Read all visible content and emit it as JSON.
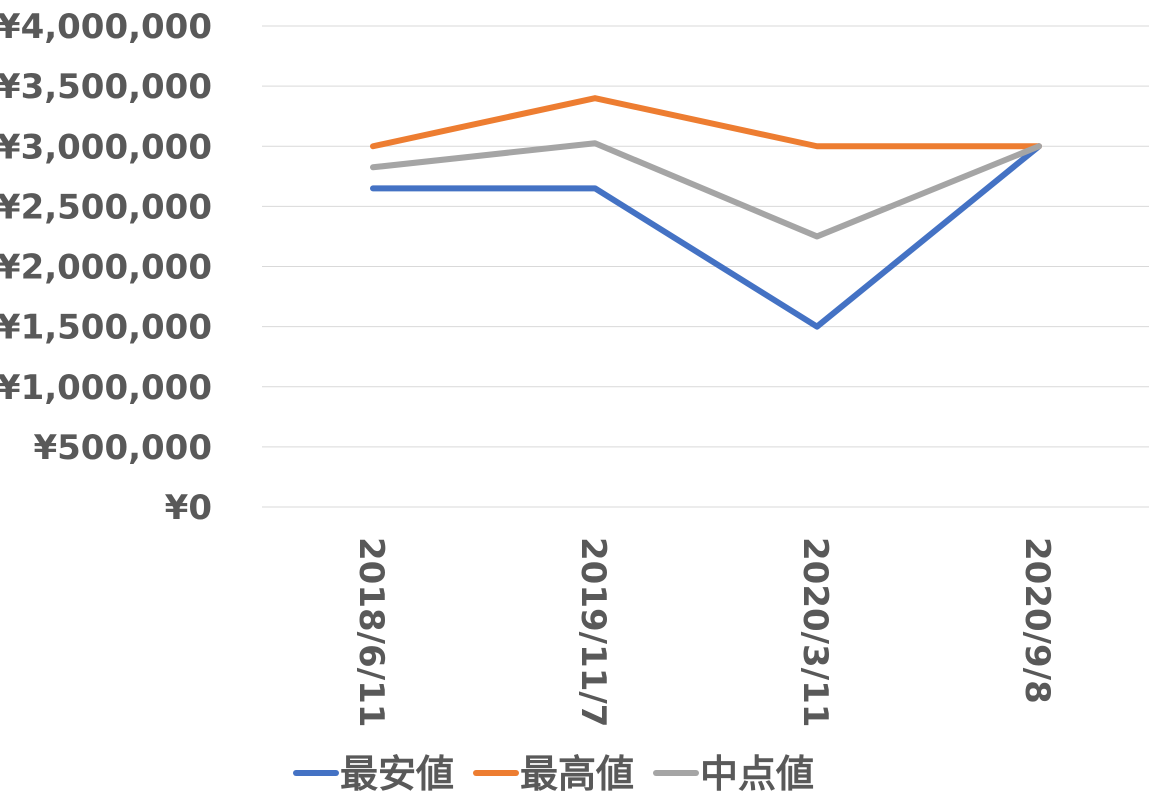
{
  "chart_data": {
    "type": "line",
    "title": "",
    "xlabel": "",
    "ylabel": "",
    "categories": [
      "2018/6/11",
      "2019/11/7",
      "2020/3/11",
      "2020/9/8"
    ],
    "y_tick_labels": [
      "¥0",
      "¥500,000",
      "¥1,000,000",
      "¥1,500,000",
      "¥2,000,000",
      "¥2,500,000",
      "¥3,000,000",
      "¥3,500,000",
      "¥4,000,000"
    ],
    "ylim": [
      0,
      4000000
    ],
    "y_step": 500000,
    "grid": true,
    "legend_position": "bottom",
    "series": [
      {
        "name": "最安値",
        "color": "#4472C4",
        "values": [
          2650000,
          2650000,
          1500000,
          3000000
        ]
      },
      {
        "name": "最高値",
        "color": "#ED7D31",
        "values": [
          3000000,
          3400000,
          3000000,
          3000000
        ]
      },
      {
        "name": "中点値",
        "color": "#A5A5A5",
        "values": [
          2825000,
          3025000,
          2250000,
          3000000
        ]
      }
    ]
  }
}
